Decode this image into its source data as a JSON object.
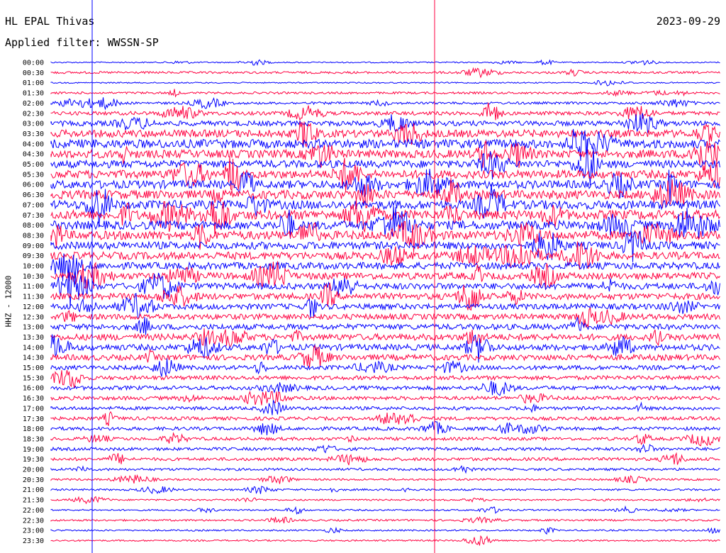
{
  "header": {
    "station": "HL EPAL Thivas",
    "date": "2023-09-29",
    "filter_prefix": "Applied filter: ",
    "filter": "WWSSN-SP"
  },
  "chart_data": {
    "type": "line",
    "title": "HL EPAL Thivas",
    "ylabel": "HHZ - 12000",
    "row_labels": [
      "00:00",
      "00:30",
      "01:00",
      "01:30",
      "02:00",
      "02:30",
      "03:00",
      "03:30",
      "04:00",
      "04:30",
      "05:00",
      "05:30",
      "06:00",
      "06:30",
      "07:00",
      "07:30",
      "08:00",
      "08:30",
      "09:00",
      "09:30",
      "10:00",
      "10:30",
      "11:00",
      "11:30",
      "12:00",
      "12:30",
      "13:00",
      "13:30",
      "14:00",
      "14:30",
      "15:00",
      "15:30",
      "16:00",
      "16:30",
      "17:00",
      "17:30",
      "18:00",
      "18:30",
      "19:00",
      "19:30",
      "20:00",
      "20:30",
      "21:00",
      "21:30",
      "22:00",
      "22:30",
      "23:00",
      "23:30"
    ],
    "row_noise_level": [
      0.4,
      0.7,
      0.4,
      0.7,
      0.8,
      1.2,
      1.6,
      2.4,
      2.8,
      2.6,
      2.4,
      2.6,
      2.6,
      2.8,
      2.8,
      3.0,
      2.8,
      2.8,
      2.4,
      2.4,
      2.2,
      2.2,
      2.0,
      2.0,
      1.8,
      1.8,
      1.8,
      2.0,
      1.9,
      1.8,
      1.4,
      1.3,
      1.3,
      1.2,
      1.1,
      1.1,
      1.1,
      1.0,
      1.0,
      1.0,
      0.8,
      0.6,
      0.6,
      0.5,
      0.5,
      0.6,
      0.5,
      0.5
    ],
    "colors": [
      "#0000ff",
      "#ff0040"
    ],
    "axis_line_color": "#ff0040"
  }
}
